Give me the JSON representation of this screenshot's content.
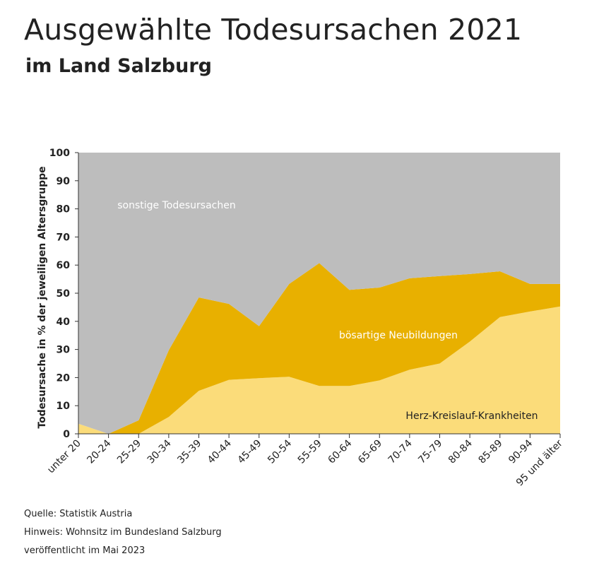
{
  "title": "Ausgewählte Todesursachen 2021",
  "subtitle": "im Land Salzburg",
  "footer": {
    "source": "Quelle: Statistik Austria",
    "hint": "Hinweis: Wohnsitz im Bundesland Salzburg",
    "published": "veröffentlicht im Mai 2023"
  },
  "colors": {
    "herz": "#fbdc7a",
    "neubildungen": "#e8b000",
    "sonstige": "#bdbdbd"
  },
  "chart_data": {
    "type": "area",
    "stacked": true,
    "ylabel": "Todesursache in % der jeweiligen Altersgruppe",
    "xlabel": "",
    "ylim": [
      0,
      100
    ],
    "yticks": [
      0,
      10,
      20,
      30,
      40,
      50,
      60,
      70,
      80,
      90,
      100
    ],
    "categories": [
      "unter 20",
      "20-24",
      "25-29",
      "30-34",
      "35-39",
      "40-44",
      "45-49",
      "50-54",
      "55-59",
      "60-64",
      "65-69",
      "70-74",
      "75-79",
      "80-84",
      "85-89",
      "90-94",
      "95 und älter"
    ],
    "series": [
      {
        "name": "Herz-Kreislauf-Krankheiten",
        "values": [
          3.6,
          0,
          0,
          6,
          15.3,
          19.2,
          19.8,
          20.3,
          17,
          17,
          19,
          22.8,
          25,
          32.8,
          41.5,
          43.5,
          45.3
        ]
      },
      {
        "name": "bösartige Neubildungen",
        "values": [
          0,
          0,
          4.8,
          23.7,
          33.2,
          27,
          18.5,
          33,
          43.7,
          34.2,
          33,
          32.5,
          31.1,
          24,
          16.3,
          9.8,
          8
        ]
      },
      {
        "name": "sonstige Todesursachen",
        "values": [
          96.4,
          100,
          95.2,
          70.3,
          51.5,
          53.8,
          61.7,
          46.7,
          39.3,
          48.8,
          48,
          44.7,
          43.9,
          43.2,
          42.2,
          46.7,
          46.7
        ]
      }
    ]
  }
}
